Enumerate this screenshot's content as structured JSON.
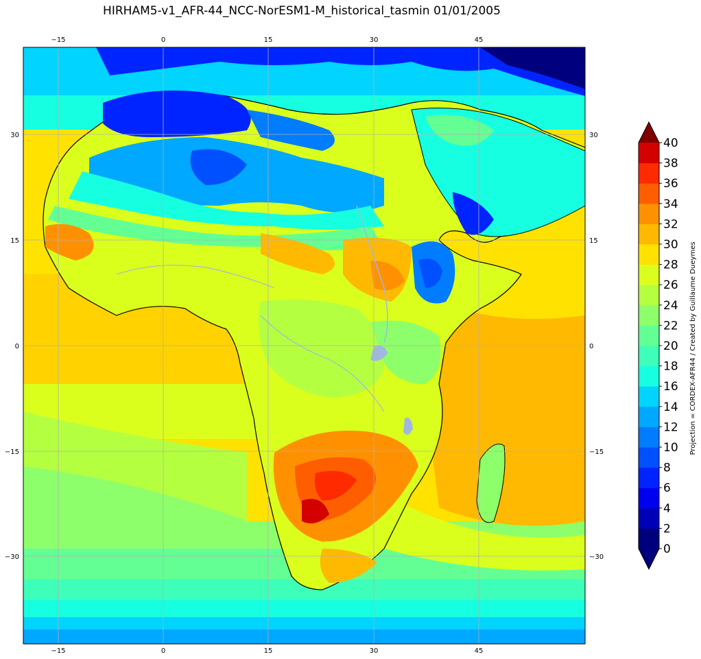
{
  "title": "HIRHAM5-v1_AFR-44_NCC-NorESM1-M_historical_tasmin 01/01/2005",
  "map": {
    "lon_ticks": [
      "−15",
      "0",
      "15",
      "30",
      "45"
    ],
    "lat_ticks": [
      "30",
      "15",
      "0",
      "−15",
      "−30"
    ],
    "grid": true
  },
  "colorbar": {
    "label": "Projection =  CORDEX-AFR44 / Created by Guillaume Dueymes",
    "ticks": [
      "0",
      "2",
      "4",
      "6",
      "8",
      "10",
      "12",
      "14",
      "16",
      "18",
      "20",
      "22",
      "24",
      "26",
      "28",
      "30",
      "32",
      "34",
      "36",
      "38",
      "40"
    ],
    "colors": [
      "#00007f",
      "#0000b7",
      "#0000f1",
      "#0024ff",
      "#0050ff",
      "#007cff",
      "#00a8ff",
      "#00d4ff",
      "#16ffe1",
      "#3dffb9",
      "#63ff94",
      "#8dff6a",
      "#b5ff41",
      "#dbff1c",
      "#ffe200",
      "#ffb900",
      "#ff9100",
      "#ff5e00",
      "#ff2a00",
      "#d40000",
      "#9a0000"
    ],
    "extend_low": "#00007f",
    "extend_high": "#7f0000"
  }
}
